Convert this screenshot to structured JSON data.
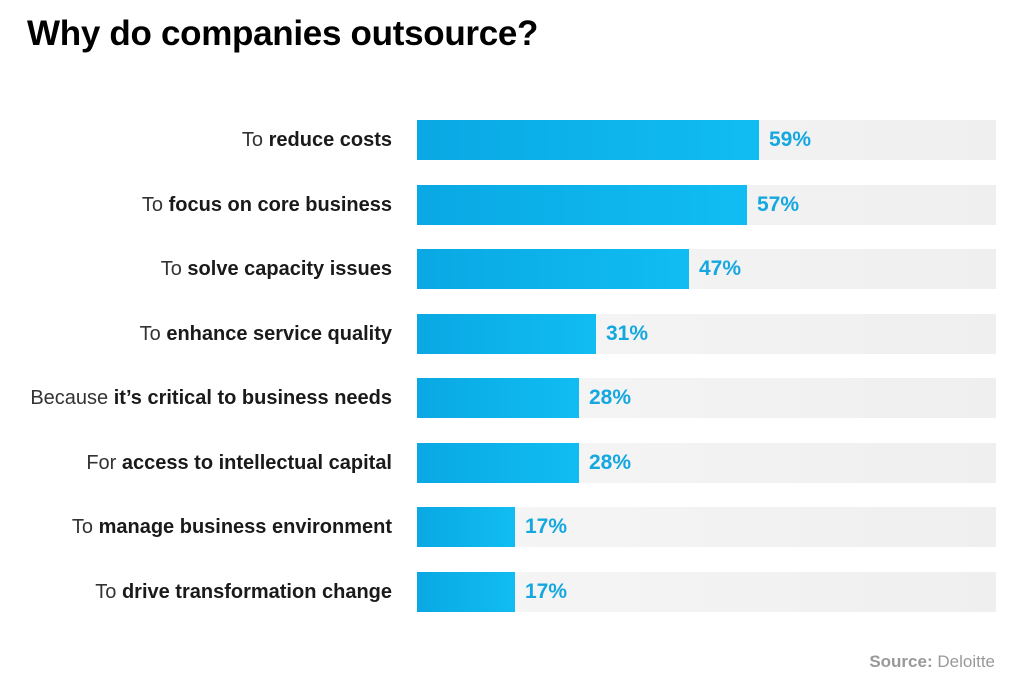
{
  "chart_data": {
    "type": "bar",
    "orientation": "horizontal",
    "title": "Why do companies outsource?",
    "categories": [
      {
        "prefix": "To",
        "emphasis": "reduce costs"
      },
      {
        "prefix": "To",
        "emphasis": "focus on core business"
      },
      {
        "prefix": "To",
        "emphasis": "solve capacity issues"
      },
      {
        "prefix": "To",
        "emphasis": "enhance service quality"
      },
      {
        "prefix": "Because",
        "emphasis": "it’s critical to business needs"
      },
      {
        "prefix": "For",
        "emphasis": "access to intellectual capital"
      },
      {
        "prefix": "To",
        "emphasis": "manage business environment"
      },
      {
        "prefix": "To",
        "emphasis": "drive transformation change"
      }
    ],
    "values": [
      59,
      57,
      47,
      31,
      28,
      28,
      17,
      17
    ],
    "value_labels": [
      "59%",
      "57%",
      "47%",
      "31%",
      "28%",
      "28%",
      "17%",
      "17%"
    ],
    "xlim": [
      0,
      100
    ],
    "grid": false,
    "bar_color": "#0fb3ec",
    "track_color": "#f2f2f2",
    "value_label_color": "#14a7e0",
    "source_label": "Source:",
    "source_value": "Deloitte"
  }
}
